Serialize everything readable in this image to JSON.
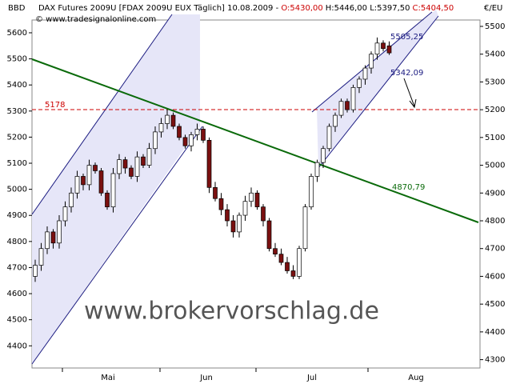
{
  "chart_data": {
    "type": "candlestick",
    "title_parts": [
      "DAX Futures 2009U [FDAX 2009U EUX  Täglich] 10.08.2009 - ",
      "O:5430,00",
      "H:5446,00 L:5397,50",
      "C:5404,50"
    ],
    "source": "© www.tradesignalonline.com",
    "watermark": "www.brokervorschlag.de",
    "y_axis_label": "€/EU",
    "y2_axis_label": "BBD",
    "months": [
      "Mai",
      "Jun",
      "Jul",
      "Aug"
    ],
    "annotations": [
      "5505,25",
      "5342,09",
      "4870,79",
      "5178"
    ],
    "up_color": "#ffffff",
    "down_color": "#7a1010",
    "categories": [
      null,
      null,
      null,
      null,
      null,
      null,
      null,
      null,
      null,
      null,
      null,
      null,
      null,
      null,
      null,
      null,
      null,
      null,
      null,
      null,
      null,
      null,
      null,
      null,
      null,
      null,
      null,
      null,
      null,
      null,
      null,
      null,
      null,
      null,
      null,
      null,
      null,
      null,
      null,
      null,
      null,
      null,
      null,
      null,
      null,
      null,
      null,
      null,
      null,
      null,
      null,
      null,
      null,
      null,
      null,
      null,
      null,
      null,
      null,
      null
    ],
    "open": [
      4600,
      4640,
      4700,
      4760,
      4720,
      4800,
      4850,
      4900,
      4960,
      4930,
      5000,
      4980,
      4900,
      4850,
      4970,
      5020,
      4990,
      4960,
      5030,
      5000,
      5060,
      5120,
      5150,
      5180,
      5140,
      5100,
      5070,
      5110,
      5130,
      5090,
      4920,
      4880,
      4840,
      4800,
      4760,
      4820,
      4870,
      4900,
      4850,
      4800,
      4700,
      4680,
      4650,
      4620,
      4600,
      4700,
      4850,
      4960,
      5010,
      5060,
      5140,
      5180,
      5230,
      5200,
      5280,
      5310,
      5350,
      5400,
      5440,
      5430
    ],
    "high": [
      4660,
      4720,
      4780,
      4770,
      4820,
      4870,
      4920,
      4980,
      4970,
      5020,
      5010,
      4990,
      4910,
      4990,
      5040,
      5030,
      5000,
      5050,
      5040,
      5080,
      5140,
      5170,
      5200,
      5190,
      5150,
      5110,
      5120,
      5150,
      5140,
      5100,
      4940,
      4900,
      4860,
      4820,
      4830,
      4890,
      4920,
      4910,
      4860,
      4810,
      4720,
      4700,
      4670,
      4640,
      4710,
      4860,
      4970,
      5020,
      5070,
      5150,
      5190,
      5240,
      5240,
      5290,
      5320,
      5360,
      5410,
      5460,
      5450,
      5446
    ],
    "low": [
      4580,
      4620,
      4680,
      4700,
      4700,
      4780,
      4830,
      4880,
      4910,
      4910,
      4970,
      4890,
      4840,
      4830,
      4950,
      4970,
      4950,
      4940,
      4990,
      4990,
      5040,
      5100,
      5130,
      5130,
      5090,
      5060,
      5050,
      5090,
      5080,
      4900,
      4870,
      4820,
      4780,
      4740,
      4740,
      4800,
      4850,
      4840,
      4780,
      4690,
      4670,
      4640,
      4610,
      4590,
      4590,
      4690,
      4840,
      4940,
      4990,
      5050,
      5120,
      5170,
      5190,
      5190,
      5260,
      5290,
      5330,
      5380,
      5410,
      5397.5
    ],
    "close": [
      4640,
      4700,
      4760,
      4720,
      4800,
      4850,
      4900,
      4960,
      4930,
      5000,
      4980,
      4900,
      4850,
      4970,
      5020,
      4990,
      4960,
      5030,
      5000,
      5060,
      5120,
      5150,
      5180,
      5140,
      5100,
      5070,
      5110,
      5130,
      5090,
      4920,
      4880,
      4840,
      4800,
      4760,
      4820,
      4870,
      4900,
      4850,
      4800,
      4700,
      4680,
      4650,
      4620,
      4600,
      4700,
      4850,
      4960,
      5010,
      5060,
      5140,
      5180,
      5230,
      5200,
      5280,
      5310,
      5350,
      5400,
      5440,
      5420,
      5404.5
    ],
    "ylim": [
      4270,
      5523
    ],
    "yticks": [
      4300,
      4400,
      4500,
      4600,
      4700,
      4800,
      4900,
      5000,
      5100,
      5200,
      5300,
      5400,
      5500
    ],
    "y2lim": [
      4315,
      5649
    ],
    "y2ticks": [
      4400,
      4500,
      4600,
      4700,
      4800,
      4900,
      5000,
      5100,
      5200,
      5300,
      5400,
      5500,
      5600
    ]
  }
}
